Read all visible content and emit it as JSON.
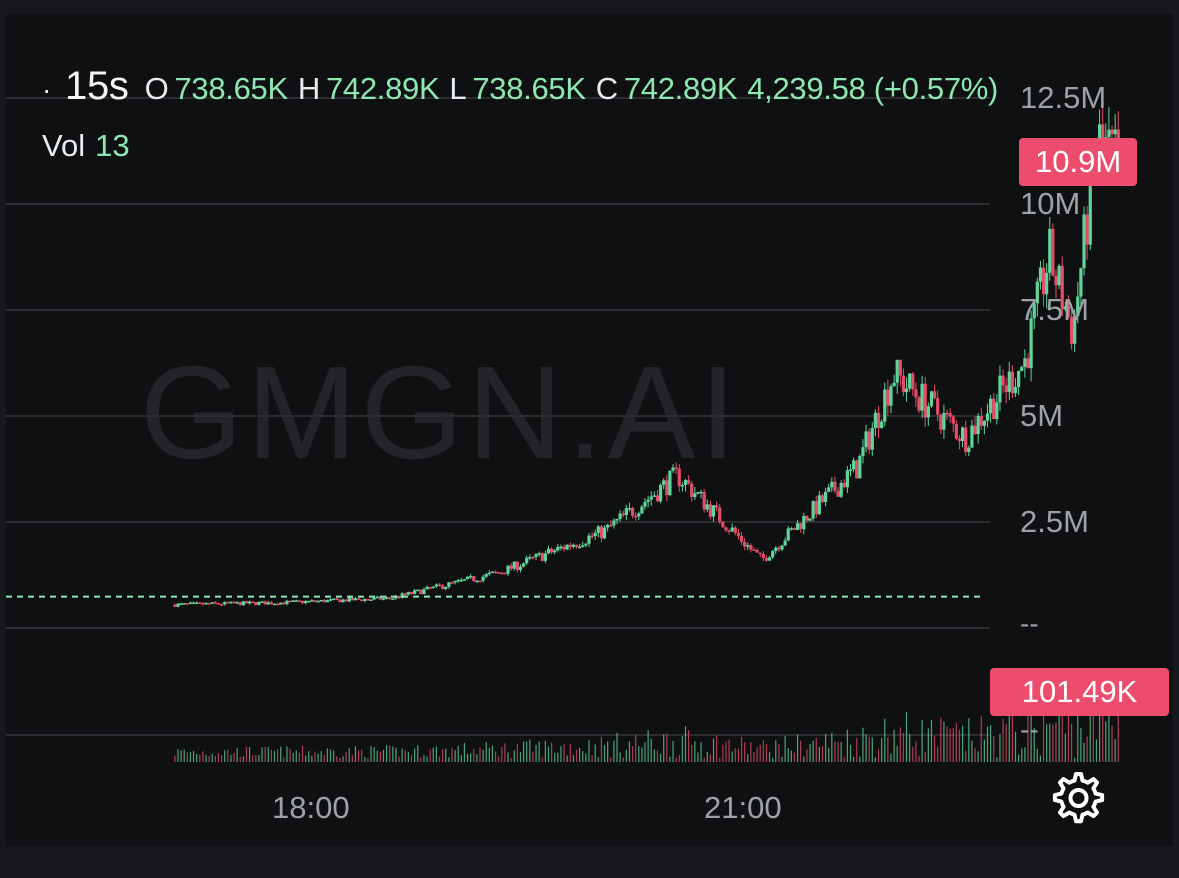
{
  "header": {
    "dot": "·",
    "interval": "15s",
    "open_key": "O",
    "open_value": "738.65K",
    "high_key": "H",
    "high_value": "742.89K",
    "low_key": "L",
    "low_value": "738.65K",
    "close_key": "C",
    "close_value": "742.89K",
    "change": "4,239.58 (+0.57%)"
  },
  "volume": {
    "label": "Vol",
    "value": "13"
  },
  "price_axis": {
    "labels": [
      "12.5M",
      "10M",
      "7.5M",
      "5M",
      "2.5M"
    ]
  },
  "volume_axis": {
    "labels": [
      "--",
      "--"
    ]
  },
  "badges": {
    "last_price": "10.9M",
    "last_volume": "101.49K"
  },
  "watermark": "GMGN.AI",
  "colors": {
    "up": "#5fd59b",
    "down": "#e44d69",
    "badge": "#ec4d6c",
    "grid": "#2a2c30"
  },
  "icons": {
    "settings": "gear-icon"
  },
  "chart_data": {
    "type": "candlestick",
    "interval": "15s",
    "x_tick_labels": [
      "18:00",
      "21:00"
    ],
    "y_tick_labels": [
      "2.5M",
      "5M",
      "7.5M",
      "10M",
      "12.5M"
    ],
    "ylim": [
      0,
      12.5
    ],
    "y_unit": "M",
    "price_key_points": [
      {
        "t": "16:45",
        "price": 0.55
      },
      {
        "t": "17:30",
        "price": 0.6
      },
      {
        "t": "18:15",
        "price": 0.7
      },
      {
        "t": "19:00",
        "price": 1.3
      },
      {
        "t": "19:45",
        "price": 2.3
      },
      {
        "t": "20:15",
        "price": 3.6
      },
      {
        "t": "20:50",
        "price": 1.6
      },
      {
        "t": "21:30",
        "price": 3.8
      },
      {
        "t": "21:45",
        "price": 6.0
      },
      {
        "t": "22:15",
        "price": 4.5
      },
      {
        "t": "22:40",
        "price": 6.3
      },
      {
        "t": "22:50",
        "price": 8.8
      },
      {
        "t": "23:00",
        "price": 7.0
      },
      {
        "t": "23:10",
        "price": 11.5
      },
      {
        "t": "23:20",
        "price": 10.9
      }
    ],
    "last_price": 10.9,
    "last_volume_k": 101.49,
    "reference_line_price": 0.74,
    "grid": true
  }
}
